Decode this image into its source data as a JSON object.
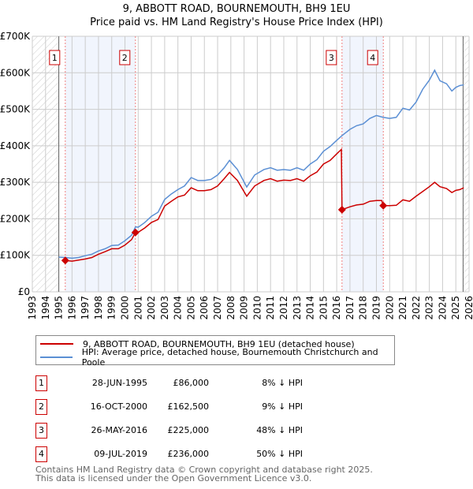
{
  "chart_data": {
    "type": "line",
    "title": "9, ABBOTT ROAD, BOURNEMOUTH, BH9 1EU",
    "subtitle": "Price paid vs. HM Land Registry's House Price Index (HPI)",
    "xlim": [
      1993,
      2026
    ],
    "ylim": [
      0,
      700000
    ],
    "y_ticks": [
      {
        "v": 0,
        "l": "£0"
      },
      {
        "v": 100000,
        "l": "£100K"
      },
      {
        "v": 200000,
        "l": "£200K"
      },
      {
        "v": 300000,
        "l": "£300K"
      },
      {
        "v": 400000,
        "l": "£400K"
      },
      {
        "v": 500000,
        "l": "£500K"
      },
      {
        "v": 600000,
        "l": "£600K"
      },
      {
        "v": 700000,
        "l": "£700K"
      }
    ],
    "x_ticks": [
      "1993",
      "1994",
      "1995",
      "1996",
      "1997",
      "1998",
      "1999",
      "2000",
      "2001",
      "2002",
      "2003",
      "2004",
      "2005",
      "2006",
      "2007",
      "2008",
      "2009",
      "2010",
      "2011",
      "2012",
      "2013",
      "2014",
      "2015",
      "2016",
      "2017",
      "2018",
      "2019",
      "2020",
      "2021",
      "2022",
      "2023",
      "2024",
      "2025",
      "2026"
    ],
    "grid": true,
    "hatched_ranges": [
      [
        1993,
        1995
      ],
      [
        2025.55,
        2026
      ]
    ],
    "shaded_ranges": [
      [
        1995.49,
        2000.79
      ],
      [
        2016.4,
        2019.52
      ]
    ],
    "series": [
      {
        "name": "9, ABBOTT ROAD, BOURNEMOUTH, BH9 1EU (detached house)",
        "color": "#cc0000",
        "x": [
          1995.49,
          1996,
          1997,
          1997.5,
          1998,
          1998.5,
          1999,
          1999.5,
          2000,
          2000.5,
          2000.79,
          2001,
          2001.5,
          2002,
          2002.5,
          2003,
          2003.5,
          2004,
          2004.5,
          2005,
          2005.5,
          2006,
          2006.5,
          2007,
          2007.5,
          2007.9,
          2008.5,
          2009.2,
          2009.8,
          2010.5,
          2011,
          2011.5,
          2012,
          2012.5,
          2013,
          2013.5,
          2014,
          2014.5,
          2015,
          2015.5,
          2016,
          2016.35,
          2016.4,
          2017,
          2017.5,
          2018,
          2018.5,
          2019,
          2019.4,
          2019.52,
          2020,
          2020.5,
          2021,
          2021.5,
          2022,
          2022.5,
          2023,
          2023.4,
          2023.8,
          2024.3,
          2024.7,
          2025,
          2025.3,
          2025.6
        ],
        "y": [
          86,
          84,
          90,
          94,
          103,
          110,
          118,
          118,
          128,
          143,
          162.5,
          163,
          175,
          190,
          198,
          235,
          248,
          260,
          265,
          285,
          277,
          277,
          280,
          290,
          310,
          327,
          305,
          262,
          290,
          305,
          310,
          303,
          306,
          305,
          310,
          303,
          318,
          328,
          350,
          360,
          378,
          390,
          225,
          233,
          238,
          240,
          248,
          250,
          250,
          236,
          236,
          237,
          252,
          248,
          262,
          275,
          288,
          300,
          288,
          283,
          272,
          278,
          280,
          285
        ]
      },
      {
        "name": "HPI: Average price, detached house, Bournemouth Christchurch and Poole",
        "color": "#5b8fd4",
        "x": [
          1995,
          1995.5,
          1996,
          1996.5,
          1997,
          1997.5,
          1998,
          1998.5,
          1999,
          1999.5,
          2000,
          2000.5,
          2000.8,
          2001,
          2001.5,
          2002,
          2002.5,
          2003,
          2003.5,
          2004,
          2004.5,
          2005,
          2005.5,
          2006,
          2006.5,
          2007,
          2007.5,
          2007.9,
          2008.5,
          2009.2,
          2009.8,
          2010.5,
          2011,
          2011.5,
          2012,
          2012.5,
          2013,
          2013.5,
          2014,
          2014.5,
          2015,
          2015.5,
          2016,
          2016.4,
          2017,
          2017.5,
          2018,
          2018.5,
          2019,
          2019.5,
          2020,
          2020.5,
          2021,
          2021.5,
          2022,
          2022.5,
          2023,
          2023.4,
          2023.8,
          2024.3,
          2024.7,
          2025,
          2025.3,
          2025.6
        ],
        "y": [
          95,
          94,
          92,
          94,
          99,
          103,
          112,
          118,
          127,
          128,
          140,
          155,
          178,
          177,
          190,
          207,
          218,
          253,
          268,
          280,
          290,
          313,
          305,
          305,
          308,
          320,
          340,
          360,
          335,
          287,
          320,
          335,
          340,
          333,
          335,
          333,
          340,
          333,
          350,
          362,
          385,
          398,
          415,
          428,
          445,
          455,
          460,
          475,
          483,
          478,
          475,
          478,
          503,
          498,
          520,
          555,
          580,
          607,
          578,
          570,
          550,
          560,
          565,
          567
        ]
      }
    ],
    "y_unit": "thousands GBP",
    "sales": [
      {
        "label": "1",
        "x": 1995.49,
        "y": 86,
        "date": "28-JUN-1995",
        "price": "£86,000",
        "hpi": "8% ↓ HPI"
      },
      {
        "label": "2",
        "x": 2000.79,
        "y": 162.5,
        "date": "16-OCT-2000",
        "price": "£162,500",
        "hpi": "9% ↓ HPI"
      },
      {
        "label": "3",
        "x": 2016.4,
        "y": 225,
        "date": "26-MAY-2016",
        "price": "£225,000",
        "hpi": "48% ↓ HPI"
      },
      {
        "label": "4",
        "x": 2019.52,
        "y": 236,
        "date": "09-JUL-2019",
        "price": "£236,000",
        "hpi": "50% ↓ HPI"
      }
    ],
    "legend_position": "below"
  },
  "footer": {
    "line1": "Contains HM Land Registry data © Crown copyright and database right 2025.",
    "line2": "This data is licensed under the Open Government Licence v3.0."
  }
}
